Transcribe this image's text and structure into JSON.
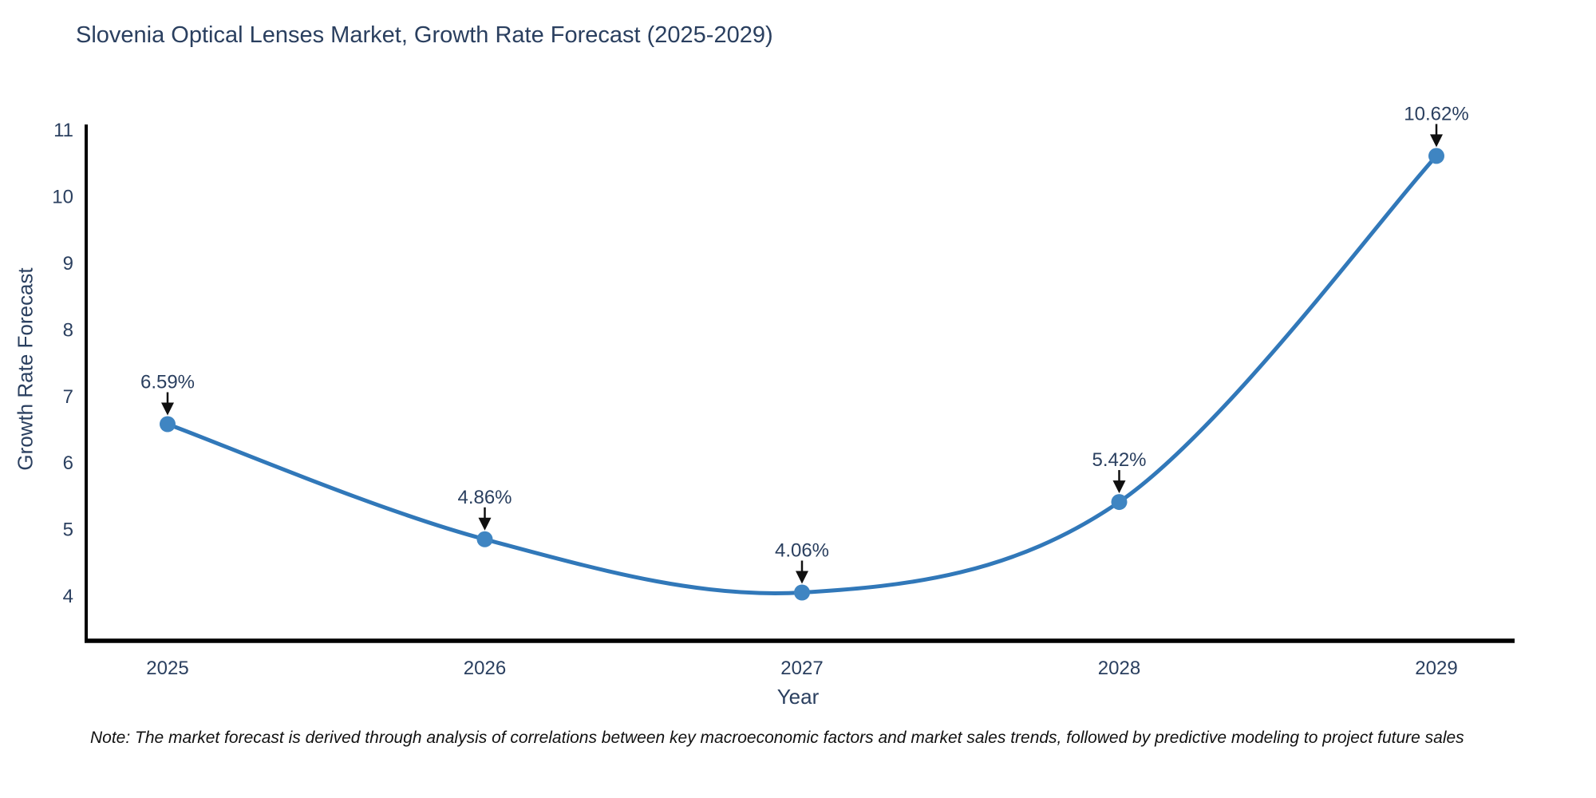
{
  "chart_data": {
    "type": "line",
    "line_shape": "spline",
    "title": "Slovenia Optical Lenses Market, Growth Rate Forecast (2025-2029)",
    "xlabel": "Year",
    "ylabel": "Growth Rate Forecast",
    "categories": [
      "2025",
      "2026",
      "2027",
      "2028",
      "2029"
    ],
    "values": [
      6.59,
      4.86,
      4.06,
      5.42,
      10.62
    ],
    "point_labels": [
      "6.59%",
      "4.86%",
      "4.06%",
      "5.42%",
      "10.62%"
    ],
    "yticks": [
      4,
      5,
      6,
      7,
      8,
      9,
      10,
      11
    ],
    "ylim": [
      3.33,
      11.1
    ],
    "grid": false,
    "legend_position": "none",
    "note": "Note: The market forecast is derived through analysis of correlations between key macroeconomic factors and market sales trends, followed by predictive modeling to project future sales",
    "colors": {
      "line": "#3178b9",
      "marker": "#3f85c2",
      "text": "#2a3f5f",
      "axis": "#000000",
      "arrow": "#101010",
      "note_text": "#111111"
    }
  }
}
